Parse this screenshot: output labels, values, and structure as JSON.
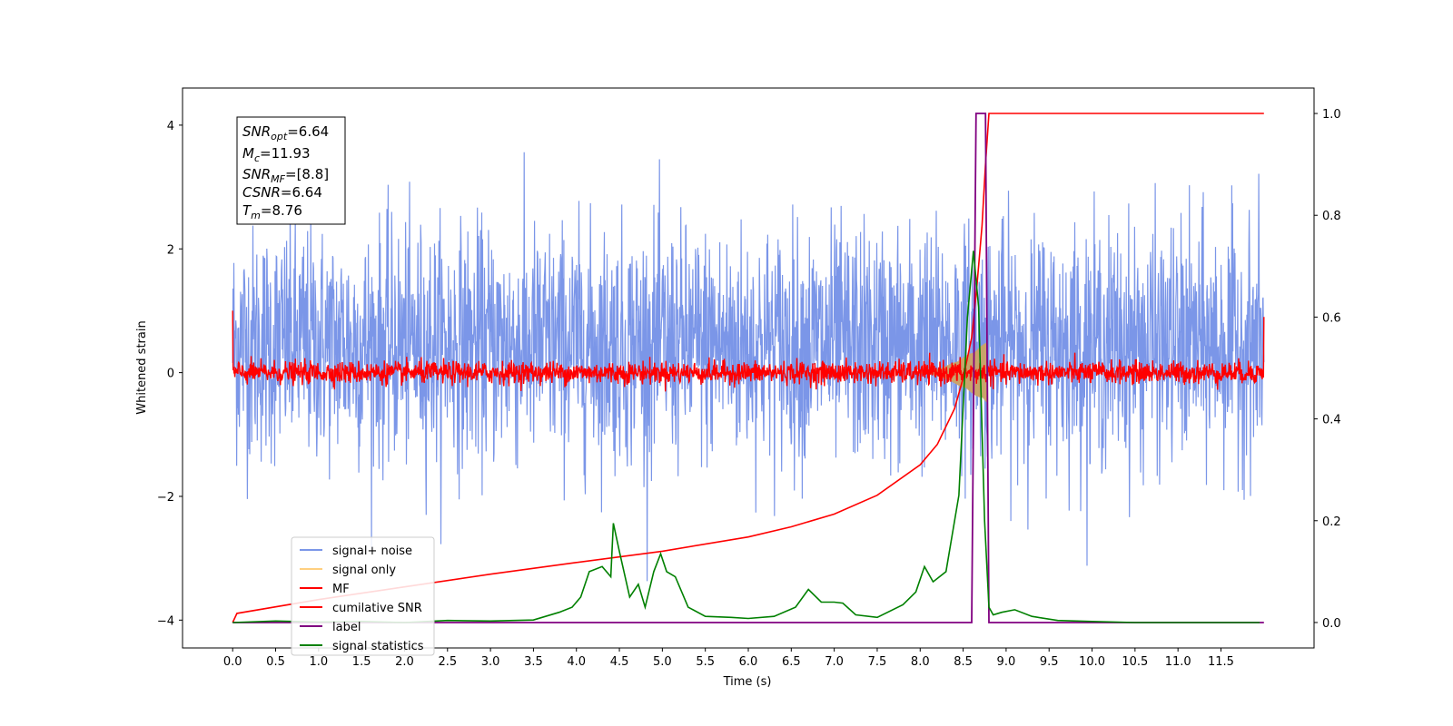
{
  "chart_data": {
    "type": "line",
    "xlabel": "Time (s)",
    "ylabel_left": "Whitened strain",
    "ylabel_right": "",
    "xlim": [
      -0.5833,
      12.5833
    ],
    "ylim_left": [
      -4.45,
      4.6
    ],
    "ylim_right": [
      -0.05,
      1.05
    ],
    "x_ticks": [
      0.0,
      0.5,
      1.0,
      1.5,
      2.0,
      2.5,
      3.0,
      3.5,
      4.0,
      4.5,
      5.0,
      5.5,
      6.0,
      6.5,
      7.0,
      7.5,
      8.0,
      8.5,
      9.0,
      9.5,
      10.0,
      10.5,
      11.0,
      11.5
    ],
    "x_tick_labels": [
      "0.0",
      "0.5",
      "1.0",
      "1.5",
      "2.0",
      "2.5",
      "3.0",
      "3.5",
      "4.0",
      "4.5",
      "5.0",
      "5.5",
      "6.0",
      "6.5",
      "7.0",
      "7.5",
      "8.0",
      "8.5",
      "9.0",
      "9.5",
      "10.0",
      "10.5",
      "11.0",
      "11.5"
    ],
    "y_left_ticks": [
      -4,
      -2,
      0,
      2,
      4
    ],
    "y_left_tick_labels": [
      "−4",
      "−2",
      "0",
      "2",
      "4"
    ],
    "y_right_ticks": [
      0.0,
      0.2,
      0.4,
      0.6,
      0.8,
      1.0
    ],
    "y_right_tick_labels": [
      "0.0",
      "0.2",
      "0.4",
      "0.6",
      "0.8",
      "1.0"
    ],
    "grid": false,
    "legend_position": "bottom-left",
    "annotation": {
      "lines": [
        {
          "main": "SNR",
          "sub": "opt",
          "rest": "=6.64"
        },
        {
          "main": "M",
          "sub": "c",
          "rest": "=11.93"
        },
        {
          "main": "SNR",
          "sub": "MF",
          "rest": "=[8.8]"
        },
        {
          "main": "CSNR",
          "sub": "",
          "rest": "=6.64"
        },
        {
          "main": "T",
          "sub": "m",
          "rest": "=8.76"
        }
      ]
    },
    "series": [
      {
        "name": "signal+ noise",
        "axis": "left",
        "color": "#7b96e8",
        "description_range": {
          "x_start": 0.0,
          "x_end": 12.0,
          "typical_band": [
            -1.5,
            2.5
          ],
          "peak_max": 4.15,
          "peak_min": -4.0
        }
      },
      {
        "name": "signal only",
        "axis": "left",
        "color": "#ffd080",
        "description_range": {
          "x_start": 8.0,
          "x_end": 8.78,
          "peak_abs": 0.5
        }
      },
      {
        "name": "MF",
        "axis": "left",
        "color": "#ff0000",
        "description_range": {
          "x_start": 0.0,
          "x_end": 12.0,
          "typical_band": [
            -0.15,
            0.15
          ],
          "edge_start": 1.0,
          "edge_end": 0.9
        }
      },
      {
        "name": "cumilative SNR",
        "axis": "right",
        "color": "#ff0000",
        "x": [
          0.0,
          0.05,
          1.0,
          2.0,
          3.0,
          4.0,
          5.0,
          6.0,
          6.5,
          7.0,
          7.5,
          8.0,
          8.2,
          8.4,
          8.5,
          8.6,
          8.66,
          8.72,
          8.76,
          8.8,
          9.0,
          10.0,
          11.0,
          12.0
        ],
        "values": [
          0.0,
          0.018,
          0.045,
          0.07,
          0.095,
          0.118,
          0.14,
          0.168,
          0.188,
          0.213,
          0.25,
          0.31,
          0.35,
          0.42,
          0.48,
          0.56,
          0.66,
          0.78,
          0.9,
          1.0,
          1.0,
          1.0,
          1.0,
          1.0
        ]
      },
      {
        "name": "label",
        "axis": "right",
        "color": "#800080",
        "x": [
          0.0,
          8.6,
          8.65,
          8.76,
          8.8,
          12.0
        ],
        "values": [
          0.0,
          0.0,
          1.0,
          1.0,
          0.0,
          0.0
        ]
      },
      {
        "name": "signal statistics",
        "axis": "right",
        "color": "#008000",
        "x": [
          0.0,
          0.5,
          1.0,
          1.5,
          2.0,
          2.5,
          3.0,
          3.5,
          3.8,
          3.95,
          4.05,
          4.15,
          4.3,
          4.4,
          4.43,
          4.5,
          4.62,
          4.72,
          4.8,
          4.9,
          4.98,
          5.05,
          5.15,
          5.3,
          5.5,
          5.8,
          6.0,
          6.3,
          6.55,
          6.7,
          6.85,
          7.0,
          7.1,
          7.25,
          7.5,
          7.8,
          7.95,
          8.05,
          8.15,
          8.3,
          8.45,
          8.55,
          8.62,
          8.68,
          8.75,
          8.8,
          8.85,
          8.95,
          9.1,
          9.3,
          9.6,
          10.0,
          10.5,
          11.0,
          11.5,
          11.95
        ],
        "values": [
          0.0,
          0.003,
          0.001,
          0.002,
          0.0,
          0.004,
          0.003,
          0.005,
          0.02,
          0.03,
          0.05,
          0.1,
          0.11,
          0.09,
          0.195,
          0.14,
          0.05,
          0.075,
          0.03,
          0.1,
          0.135,
          0.1,
          0.09,
          0.03,
          0.012,
          0.01,
          0.008,
          0.012,
          0.03,
          0.065,
          0.04,
          0.04,
          0.038,
          0.015,
          0.01,
          0.035,
          0.06,
          0.11,
          0.08,
          0.1,
          0.25,
          0.6,
          0.73,
          0.62,
          0.2,
          0.03,
          0.015,
          0.02,
          0.025,
          0.012,
          0.004,
          0.002,
          0.0,
          0.0,
          0.0,
          0.0
        ]
      }
    ]
  }
}
